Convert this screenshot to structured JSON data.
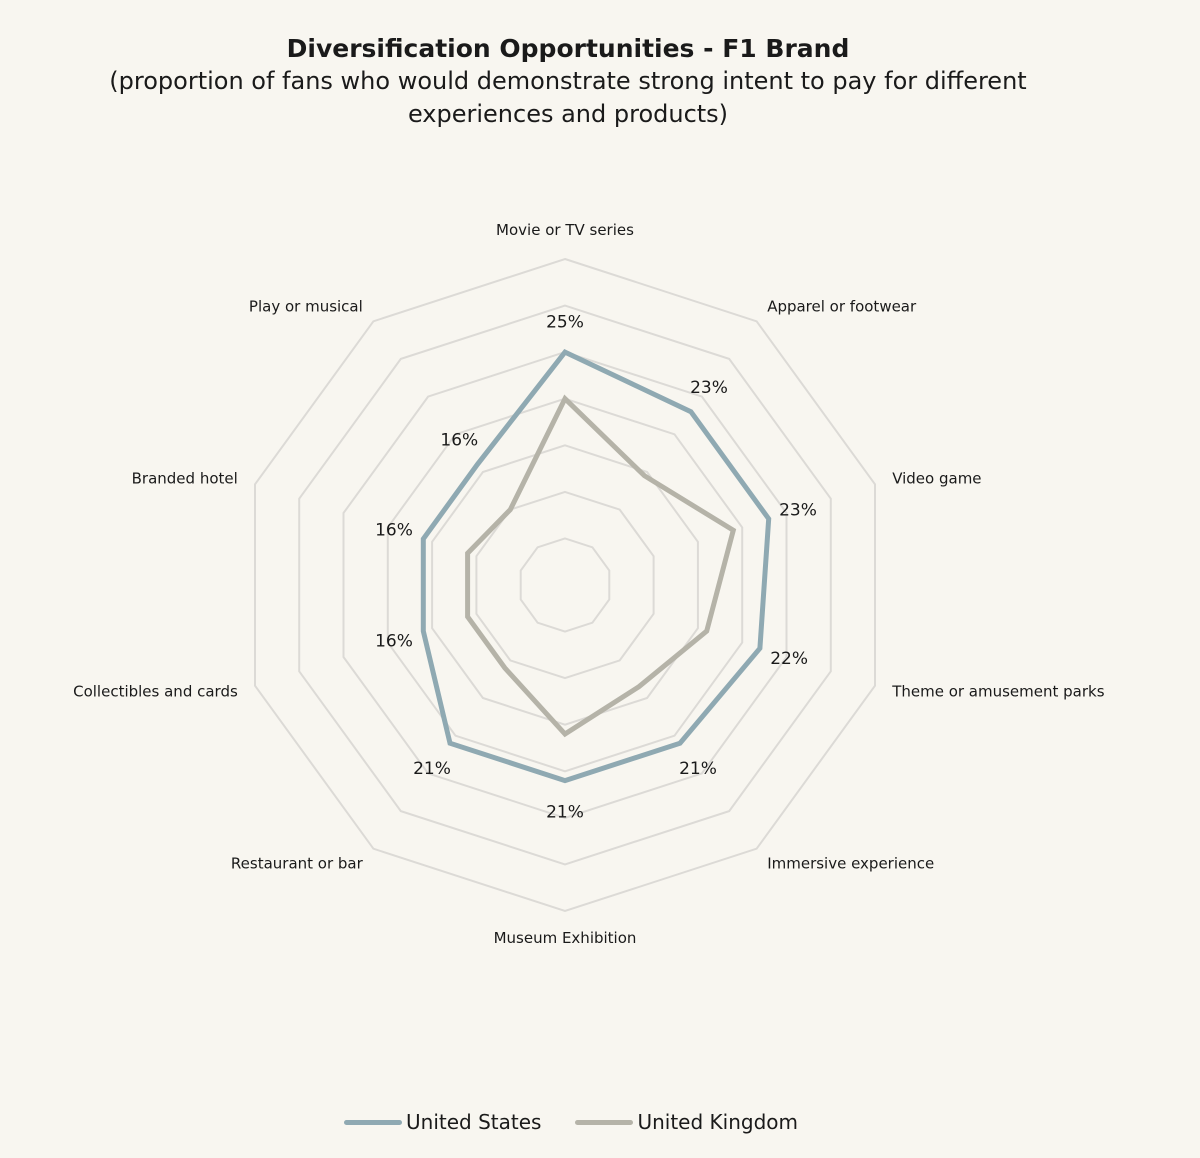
{
  "chart_data": {
    "type": "radar",
    "title": "Diversification Opportunities - F1 Brand",
    "subtitle": "(proportion of fans who would demonstrate strong intent to pay for different experiences and products)",
    "categories": [
      "Movie or TV series",
      "Apparel or footwear",
      "Video game",
      "Theme or amusement parks",
      "Immersive experience",
      "Museum Exhibition",
      "Restaurant or bar",
      "Collectibles and cards",
      "Branded hotel",
      "Play or musical"
    ],
    "series": [
      {
        "name": "United States",
        "values": [
          25,
          23,
          23,
          22,
          21,
          21,
          21,
          16,
          16,
          16
        ],
        "color": "#8fa9b2",
        "labels": [
          "25%",
          "23%",
          "23%",
          "22%",
          "21%",
          "21%",
          "21%",
          "16%",
          "16%",
          "16%"
        ]
      },
      {
        "name": "United Kingdom",
        "values": [
          20,
          14.5,
          19,
          16,
          13.5,
          16,
          11,
          11,
          11,
          10
        ],
        "color": "#b5b3a8"
      }
    ],
    "rlim": [
      0,
      35
    ],
    "grid_values": [
      5,
      10,
      15,
      20,
      25,
      30,
      35
    ],
    "grid": true,
    "legend_position": "bottom"
  }
}
